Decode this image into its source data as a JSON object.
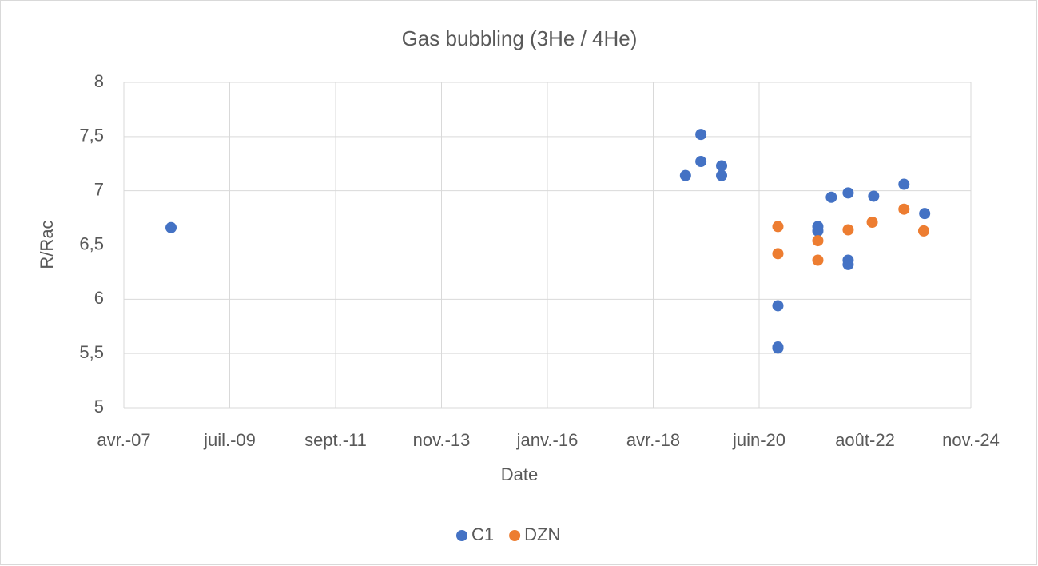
{
  "chart_data": {
    "type": "scatter",
    "title": "Gas bubbling (3He / 4He)",
    "x_label": "Date",
    "y_label": "R/Rac",
    "xlim": [
      2007.32,
      2024.92
    ],
    "xticks": [
      {
        "value": 2007.32,
        "label": "avr.-07"
      },
      {
        "value": 2009.52,
        "label": "juil.-09"
      },
      {
        "value": 2011.72,
        "label": "sept.-11"
      },
      {
        "value": 2013.92,
        "label": "nov.-13"
      },
      {
        "value": 2016.12,
        "label": "janv.-16"
      },
      {
        "value": 2018.32,
        "label": "avr.-18"
      },
      {
        "value": 2020.52,
        "label": "juin-20"
      },
      {
        "value": 2022.72,
        "label": "août-22"
      },
      {
        "value": 2024.92,
        "label": "nov.-24"
      }
    ],
    "ylim": [
      5,
      8
    ],
    "yticks": [
      5,
      {
        "value": 5.5,
        "label": "5,5"
      },
      6,
      {
        "value": 6.5,
        "label": "6,5"
      },
      7,
      {
        "value": 7.5,
        "label": "7,5"
      },
      8
    ],
    "grid": true,
    "legend": "bottom",
    "series": [
      {
        "name": "C1",
        "color": "#4472c4",
        "x": [
          2008.3,
          2018.99,
          2019.31,
          2019.31,
          2019.74,
          2019.74,
          2020.91,
          2020.91,
          2020.91,
          2021.74,
          2021.74,
          2022.02,
          2022.37,
          2022.37,
          2022.37,
          2022.9,
          2023.53,
          2023.96
        ],
        "values": [
          6.66,
          7.14,
          7.52,
          7.27,
          7.23,
          7.14,
          5.94,
          5.55,
          5.56,
          6.67,
          6.63,
          6.94,
          6.98,
          6.36,
          6.32,
          6.95,
          7.06,
          6.79
        ]
      },
      {
        "name": "DZN",
        "color": "#ed7d31",
        "x": [
          2020.91,
          2020.91,
          2021.74,
          2021.74,
          2022.37,
          2022.87,
          2023.53,
          2023.94
        ],
        "values": [
          6.67,
          6.42,
          6.54,
          6.36,
          6.64,
          6.71,
          6.83,
          6.63
        ]
      }
    ]
  }
}
